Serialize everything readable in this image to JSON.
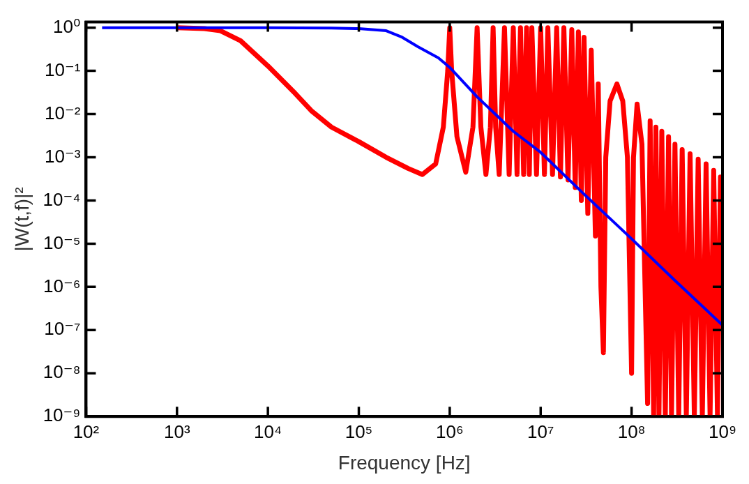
{
  "chart_data": {
    "type": "line",
    "xlabel": "Frequency [Hz]",
    "ylabel": "|W(t,f)|²",
    "log": "xy",
    "xlim": [
      100,
      1000000000
    ],
    "ylim": [
      1e-09,
      1.35
    ],
    "xticks": [
      {
        "value": 100,
        "label": "10²"
      },
      {
        "value": 1000,
        "label": "10³"
      },
      {
        "value": 10000,
        "label": "10⁴"
      },
      {
        "value": 100000,
        "label": "10⁵"
      },
      {
        "value": 1000000,
        "label": "10⁶"
      },
      {
        "value": 10000000,
        "label": "10⁷"
      },
      {
        "value": 100000000,
        "label": "10⁸"
      },
      {
        "value": 1000000000,
        "label": "10⁹"
      }
    ],
    "yticks": [
      {
        "value": 1e-09,
        "label": "10⁻⁹"
      },
      {
        "value": 1e-08,
        "label": "10⁻⁸"
      },
      {
        "value": 1e-07,
        "label": "10⁻⁷"
      },
      {
        "value": 1e-06,
        "label": "10⁻⁶"
      },
      {
        "value": 1e-05,
        "label": "10⁻⁵"
      },
      {
        "value": 0.0001,
        "label": "10⁻⁴"
      },
      {
        "value": 0.001,
        "label": "10⁻³"
      },
      {
        "value": 0.01,
        "label": "10⁻²"
      },
      {
        "value": 0.1,
        "label": "10⁻¹"
      },
      {
        "value": 1,
        "label": "10⁰"
      }
    ],
    "marker": "none",
    "line_style": "solid",
    "legend": false,
    "series": [
      {
        "color": "#ff0000",
        "x": [
          1000,
          2000,
          3000,
          5000,
          10000,
          20000,
          30000,
          50000,
          100000,
          200000,
          350000,
          500000,
          700000,
          850000,
          950000,
          1000000,
          1050000,
          1200000,
          1500000,
          1800000,
          2000000,
          2200000,
          2500000,
          2800000,
          3000000,
          3200000,
          3500000,
          4000000,
          4500000,
          5000000,
          5500000,
          6000000,
          6500000,
          7000000,
          7500000,
          8000000,
          9000000,
          10000000,
          11000000,
          12000000,
          13500000,
          15000000,
          16500000,
          18000000,
          20000000,
          22000000,
          24000000,
          26000000,
          28000000,
          30000000,
          33000000,
          36000000,
          40000000,
          43000000,
          46000000,
          49000000,
          52000000,
          58000000,
          69000000,
          80000000,
          90000000,
          100000000,
          105000000,
          115000000,
          130000000,
          150000000,
          160000000,
          175000000,
          185000000,
          200000000,
          215000000,
          235000000,
          255000000,
          275000000,
          300000000,
          330000000,
          360000000,
          400000000,
          440000000,
          490000000,
          540000000,
          600000000,
          660000000,
          730000000,
          800000000,
          880000000,
          950000000,
          1000000000
        ],
        "values": [
          1,
          0.95,
          0.85,
          0.5,
          0.13,
          0.03,
          0.012,
          0.005,
          0.0023,
          0.001,
          0.00055,
          0.0004,
          0.0007,
          0.005,
          0.1,
          1,
          0.1,
          0.003,
          0.00045,
          0.005,
          1,
          0.005,
          0.0004,
          0.005,
          1,
          0.005,
          0.0004,
          1,
          0.0004,
          1,
          0.0004,
          1,
          0.0004,
          1,
          0.0004,
          1,
          0.0004,
          1,
          0.0004,
          1,
          0.0004,
          1,
          0.00035,
          1,
          0.0003,
          0.9,
          0.0002,
          0.8,
          0.0001,
          0.6,
          5e-05,
          0.3,
          1.5e-05,
          0.05,
          1e-06,
          3e-08,
          0.001,
          0.02,
          0.05,
          0.02,
          0.001,
          1e-08,
          0.001,
          0.017,
          0.002,
          2e-09,
          0.007,
          1e-09,
          0.005,
          1e-09,
          0.004,
          1e-09,
          0.003,
          1e-09,
          0.002,
          1e-09,
          0.0015,
          1e-09,
          0.0012,
          1e-09,
          0.0009,
          1e-09,
          0.0007,
          1e-09,
          0.0005,
          1e-09,
          0.00035,
          0.0003
        ]
      },
      {
        "color": "#0000ff",
        "x": [
          150,
          10000,
          50000,
          100000,
          200000,
          300000,
          450000,
          750000,
          1000000,
          2000000,
          5000000,
          10000000,
          30000000,
          100000000,
          300000000,
          1000000000
        ],
        "values": [
          1,
          1,
          0.98,
          0.95,
          0.85,
          0.6,
          0.36,
          0.2,
          0.12,
          0.025,
          0.004,
          0.0013,
          0.00014,
          1.3e-05,
          1.4e-06,
          1.3e-07
        ]
      }
    ]
  }
}
